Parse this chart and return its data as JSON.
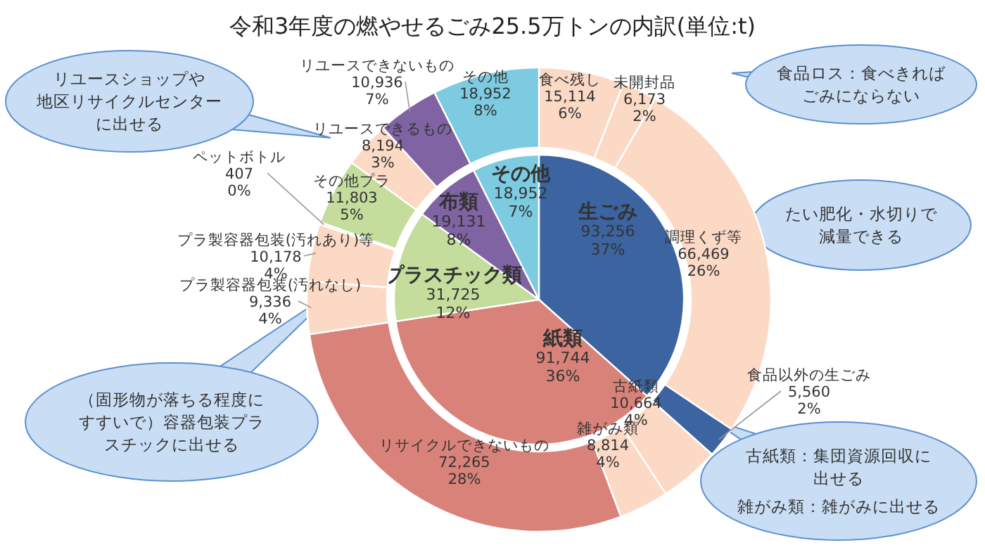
{
  "chart_data": [
    {
      "type": "pie",
      "title": "令和3年度の燃やせるごみ25.5万トンの内訳(単位:t)",
      "categories": [
        "生ごみ",
        "紙類",
        "プラスチック類",
        "布類",
        "その他"
      ],
      "values": [
        93256,
        91744,
        31725,
        19131,
        18952
      ],
      "colors": [
        "#3b64a0",
        "#d9827a",
        "#c4dc9c",
        "#7f63a2",
        "#7ccbe0"
      ],
      "value_labels": [
        "93,256\n37%",
        "91,744\n36%",
        "31,725\n12%",
        "19,131\n8%",
        "18,952\n7%"
      ],
      "annotations": [
        "リユースショップや地区リサイクルセンターに出せる",
        "食品ロス：食べきればごみにならない",
        "たい肥化・水切りで減量できる",
        "（固形物が落ちる程度にすすいで）容器包装プラスチックに出せる",
        "古紙類：集団資源回収に出せる",
        "雑がみ類：雑がみに出せる"
      ]
    },
    {
      "type": "donut",
      "categories": [
        "食べ残し",
        "未開封品",
        "調理くず等",
        "食品以外の生ごみ",
        "古紙類",
        "雑がみ類",
        "リサイクルできないもの",
        "プラ製容器包装(汚れなし)",
        "プラ製容器包装(汚れあり)等",
        "ペットボトル",
        "その他プラ",
        "リユースできるもの",
        "リユースできないもの",
        "その他"
      ],
      "values": [
        15114,
        6173,
        66469,
        5560,
        10664,
        8814,
        72265,
        9336,
        10178,
        407,
        11803,
        8194,
        10936,
        18952
      ],
      "colors": [
        "#fbd9c4",
        "#fbd9c4",
        "#fbd9c4",
        "#3b64a0",
        "#fbd9c4",
        "#fbd9c4",
        "#d9827a",
        "#fbd9c4",
        "#fbd9c4",
        "#e2eccd",
        "#c4dc9c",
        "#fbd9c4",
        "#7f63a2",
        "#7ccbe0"
      ],
      "value_labels": [
        "15,114\n6%",
        "6,173\n2%",
        "66,469\n26%",
        "5,560\n2%",
        "10,664\n4%",
        "8,814\n4%",
        "72,265\n28%",
        "9,336\n4%",
        "10,178\n4%",
        "407\n0%",
        "11,803\n5%",
        "8,194\n3%",
        "10,936\n7%",
        "18,952\n8%"
      ]
    }
  ]
}
